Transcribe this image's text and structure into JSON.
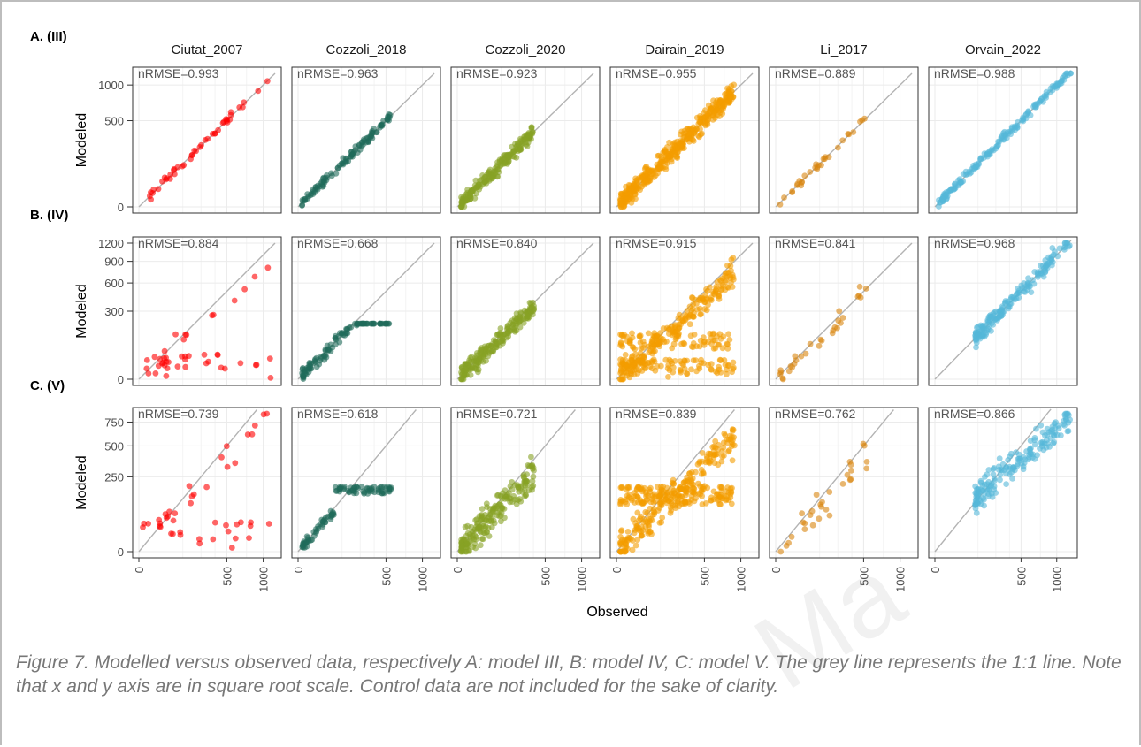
{
  "figure": {
    "caption": "Figure 7. Modelled versus observed data, respectively A: model III, B: model IV, C: model V. The grey line represents the 1:1 line. Note that x and y axis are in square root scale. Control data are not included for the sake of clarity.",
    "watermark": "Ma"
  },
  "chart_data": {
    "type": "scatter",
    "layout": "facet grid 3 rows x 6 columns",
    "xlabel": "Observed",
    "ylabel": "Modeled",
    "scale": "square root (x and y)",
    "grid": true,
    "reference_line": "1:1",
    "x_ticks": [
      0,
      500,
      1000
    ],
    "x_tick_labels": [
      "0",
      "500",
      "1000"
    ],
    "columns": [
      {
        "name": "Ciutat_2007",
        "color": "#ff0000",
        "xmax": 1200,
        "n": 45
      },
      {
        "name": "Cozzoli_2018",
        "color": "#1f6b5a",
        "xmax": 1200,
        "n": 110
      },
      {
        "name": "Cozzoli_2020",
        "color": "#87a125",
        "xmax": 1200,
        "n": 200
      },
      {
        "name": "Dairain_2019",
        "color": "#f39c00",
        "xmax": 1200,
        "n": 380
      },
      {
        "name": "Li_2017",
        "color": "#d9860f",
        "xmax": 1200,
        "n": 30
      },
      {
        "name": "Orvain_2022",
        "color": "#55b8d9",
        "xmax": 1250,
        "n": 170
      }
    ],
    "rows": [
      {
        "label": "A. (III)",
        "model": "III",
        "ymax": 1200,
        "y_ticks": [
          0,
          500,
          1000
        ],
        "y_tick_labels": [
          "0",
          "500",
          "1000"
        ],
        "nrmse": [
          "nRMSE=0.993",
          "nRMSE=0.963",
          "nRMSE=0.923",
          "nRMSE=0.955",
          "nRMSE=0.889",
          "nRMSE=0.988"
        ]
      },
      {
        "label": "B. (IV)",
        "model": "IV",
        "ymax": 1200,
        "y_ticks": [
          0,
          300,
          600,
          900,
          1200
        ],
        "y_tick_labels": [
          "0",
          "300",
          "600",
          "900",
          "1200"
        ],
        "nrmse": [
          "nRMSE=0.884",
          "nRMSE=0.668",
          "nRMSE=0.840",
          "nRMSE=0.915",
          "nRMSE=0.841",
          "nRMSE=0.968"
        ]
      },
      {
        "label": "C. (V)",
        "model": "V",
        "ymax": 850,
        "y_ticks": [
          0,
          250,
          500,
          750
        ],
        "y_tick_labels": [
          "0",
          "250",
          "500",
          "750"
        ],
        "nrmse": [
          "nRMSE=0.739",
          "nRMSE=0.618",
          "nRMSE=0.721",
          "nRMSE=0.839",
          "nRMSE=0.762",
          "nRMSE=0.866"
        ]
      }
    ]
  }
}
